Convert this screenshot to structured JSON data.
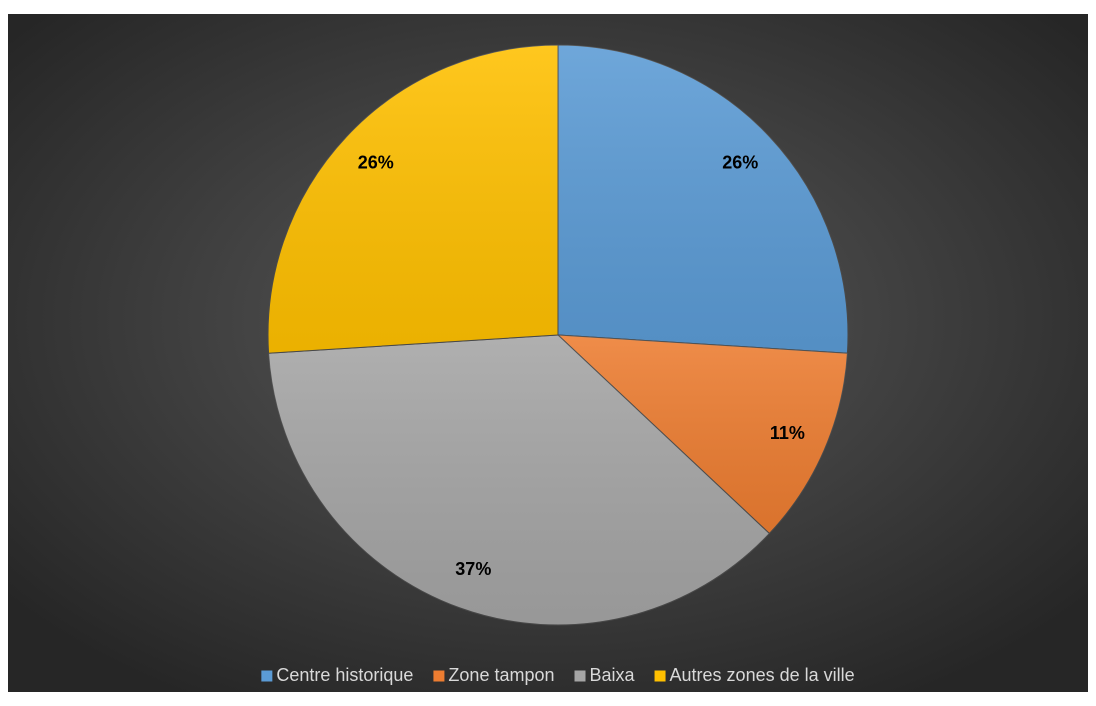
{
  "chart_data": {
    "type": "pie",
    "categories": [
      "Centre historique",
      "Zone tampon",
      "Baixa",
      "Autres zones de la ville"
    ],
    "values": [
      26,
      11,
      37,
      26
    ],
    "value_labels": [
      "26%",
      "11%",
      "37%",
      "26%"
    ],
    "colors": [
      "#5b9bd5",
      "#ed7d31",
      "#a5a5a5",
      "#ffc000"
    ],
    "legend": "bottom"
  }
}
